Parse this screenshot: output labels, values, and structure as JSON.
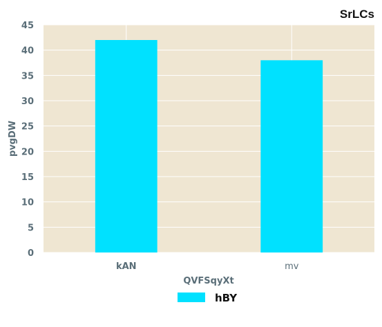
{
  "chart_data": {
    "type": "bar",
    "title": "SrLCs",
    "xlabel": "QVFSqyXt",
    "ylabel": "pvgDW",
    "categories": [
      "kAN",
      "mv"
    ],
    "series": [
      {
        "name": "hBY",
        "values": [
          42,
          38
        ],
        "color": "#00e1ff"
      }
    ],
    "ylim": [
      0,
      45
    ],
    "yticks": [
      0,
      5,
      10,
      15,
      20,
      25,
      30,
      35,
      40,
      45
    ],
    "grid": true,
    "plot_background": "#efe6d2",
    "legend": "bottom-center"
  }
}
